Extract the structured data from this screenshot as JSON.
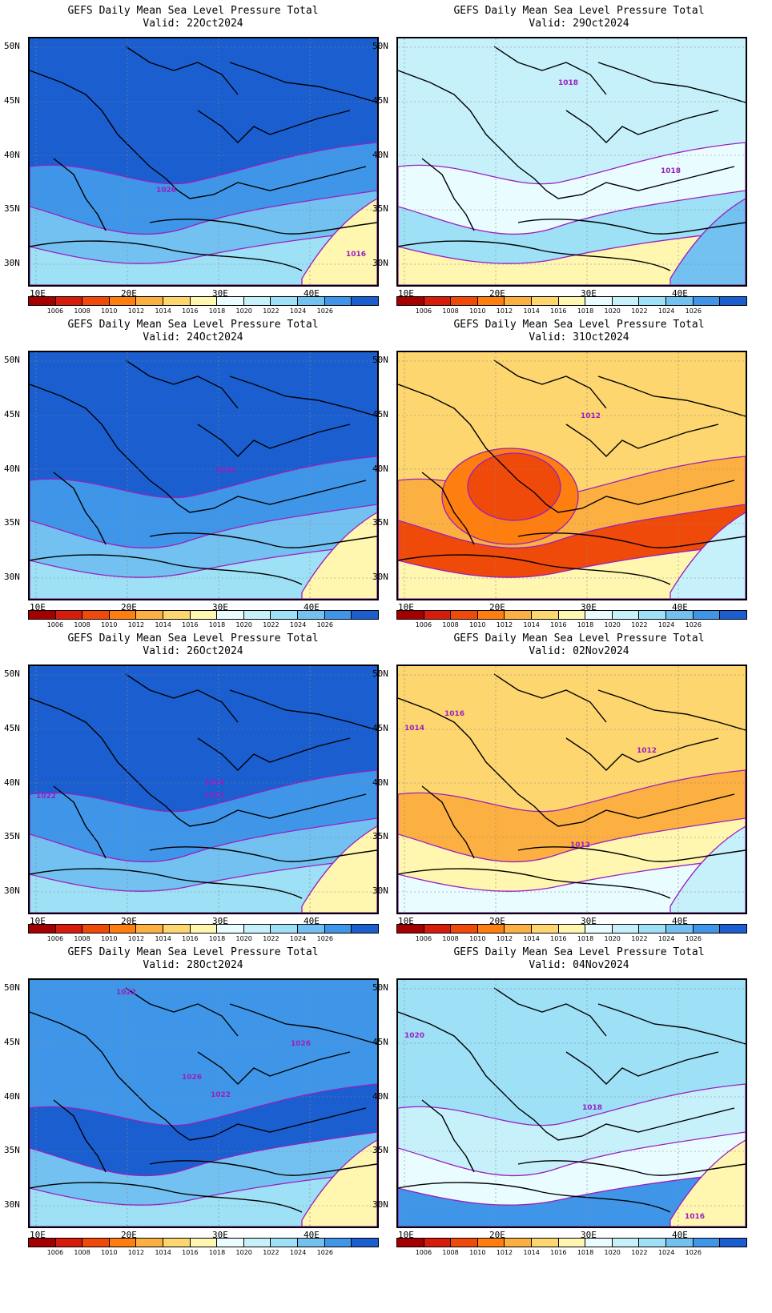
{
  "title_line": "GEFS Daily Mean Sea Level Pressure Total",
  "valid_prefix": "Valid: ",
  "lat_labels": [
    "50N",
    "45N",
    "40N",
    "35N",
    "30N"
  ],
  "lon_labels": [
    "10E",
    "20E",
    "30E",
    "40E"
  ],
  "colorbar": {
    "labels": [
      "1006",
      "1008",
      "1010",
      "1012",
      "1014",
      "1016",
      "1018",
      "1020",
      "1022",
      "1024",
      "1026"
    ],
    "colors": [
      "#a50000",
      "#d81c0c",
      "#f04a0a",
      "#ff7e10",
      "#fdb042",
      "#fdd670",
      "#fff6b0",
      "#e9fcff",
      "#c6f1fb",
      "#9ee0f6",
      "#72c1f0",
      "#3f96e8",
      "#1a5ed0"
    ]
  },
  "panels": [
    {
      "valid": "22Oct2024",
      "labels": [
        "1026",
        "1016"
      ]
    },
    {
      "valid": "29Oct2024",
      "labels": [
        "1018",
        "1018"
      ]
    },
    {
      "valid": "24Oct2024",
      "labels": [
        "1026"
      ]
    },
    {
      "valid": "31Oct2024",
      "labels": [
        "1012"
      ]
    },
    {
      "valid": "26Oct2024",
      "labels": [
        "1022",
        "1024",
        "1022"
      ]
    },
    {
      "valid": "02Nov2024",
      "labels": [
        "1016",
        "1014",
        "1012",
        "1012"
      ]
    },
    {
      "valid": "28Oct2024",
      "labels": [
        "1022",
        "1026",
        "1026",
        "1022"
      ]
    },
    {
      "valid": "04Nov2024",
      "labels": [
        "1020",
        "1018",
        "1016"
      ]
    }
  ]
}
